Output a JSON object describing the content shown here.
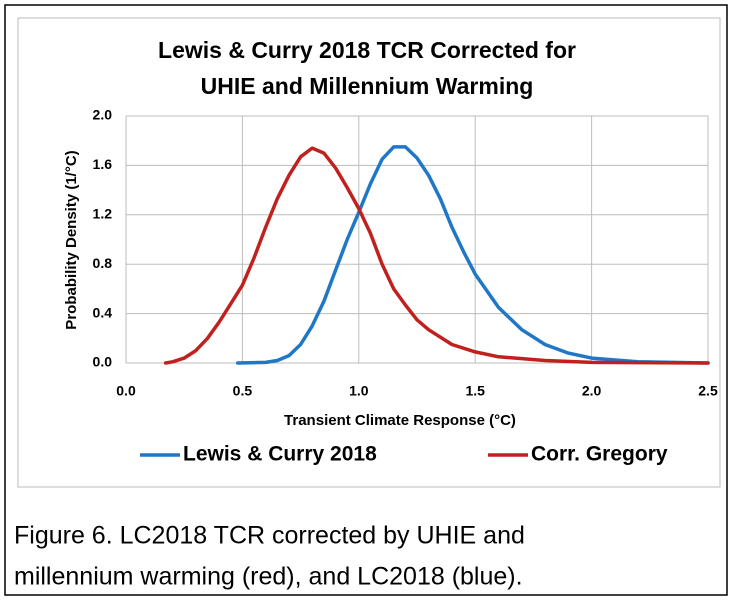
{
  "chart_data": {
    "type": "line",
    "title": [
      "Lewis & Curry 2018 TCR Corrected for",
      "UHIE and Millennium Warming"
    ],
    "x_label": "Transient Climate Response (°C)",
    "y_label": "Probability Density (1/°C)",
    "xlim": [
      0,
      2.5
    ],
    "xticks": [
      {
        "value": 0,
        "label": "0.0"
      },
      0.5,
      {
        "value": 1,
        "label": "1.0"
      },
      1.5,
      {
        "value": 2,
        "label": "2.0"
      },
      2.5
    ],
    "ylim": [
      0,
      2
    ],
    "yticks": [
      {
        "value": 0,
        "label": "0.0"
      },
      0.4,
      0.8,
      1.2,
      1.6,
      {
        "value": 2,
        "label": "2.0"
      }
    ],
    "grid": true,
    "legend": "bottom",
    "series": [
      {
        "name": "Lewis & Curry 2018",
        "color": "#1f77c8",
        "x": [
          0.48,
          0.6,
          0.65,
          0.7,
          0.75,
          0.8,
          0.85,
          0.9,
          0.95,
          1.0,
          1.05,
          1.1,
          1.15,
          1.2,
          1.25,
          1.3,
          1.35,
          1.4,
          1.45,
          1.5,
          1.6,
          1.7,
          1.8,
          1.9,
          2.0,
          2.2,
          2.5
        ],
        "values": [
          0.0,
          0.005,
          0.02,
          0.06,
          0.15,
          0.3,
          0.5,
          0.75,
          1.0,
          1.22,
          1.45,
          1.65,
          1.75,
          1.75,
          1.66,
          1.52,
          1.33,
          1.1,
          0.9,
          0.72,
          0.45,
          0.27,
          0.15,
          0.08,
          0.04,
          0.01,
          0.0
        ]
      },
      {
        "name": "Corr. Gregory",
        "color": "#c0211f",
        "x": [
          0.17,
          0.2,
          0.25,
          0.3,
          0.35,
          0.4,
          0.45,
          0.5,
          0.55,
          0.6,
          0.65,
          0.7,
          0.75,
          0.8,
          0.85,
          0.9,
          0.95,
          1.0,
          1.05,
          1.1,
          1.15,
          1.2,
          1.25,
          1.3,
          1.4,
          1.5,
          1.6,
          1.8,
          2.0,
          2.5
        ],
        "values": [
          0.0,
          0.01,
          0.04,
          0.1,
          0.2,
          0.33,
          0.48,
          0.63,
          0.85,
          1.1,
          1.33,
          1.52,
          1.67,
          1.74,
          1.7,
          1.58,
          1.42,
          1.25,
          1.05,
          0.8,
          0.6,
          0.47,
          0.35,
          0.27,
          0.15,
          0.09,
          0.05,
          0.02,
          0.005,
          0.0
        ]
      }
    ]
  },
  "caption": [
    "Figure 6.  LC2018 TCR corrected by UHIE and",
    "millennium warming (red), and LC2018 (blue)."
  ]
}
